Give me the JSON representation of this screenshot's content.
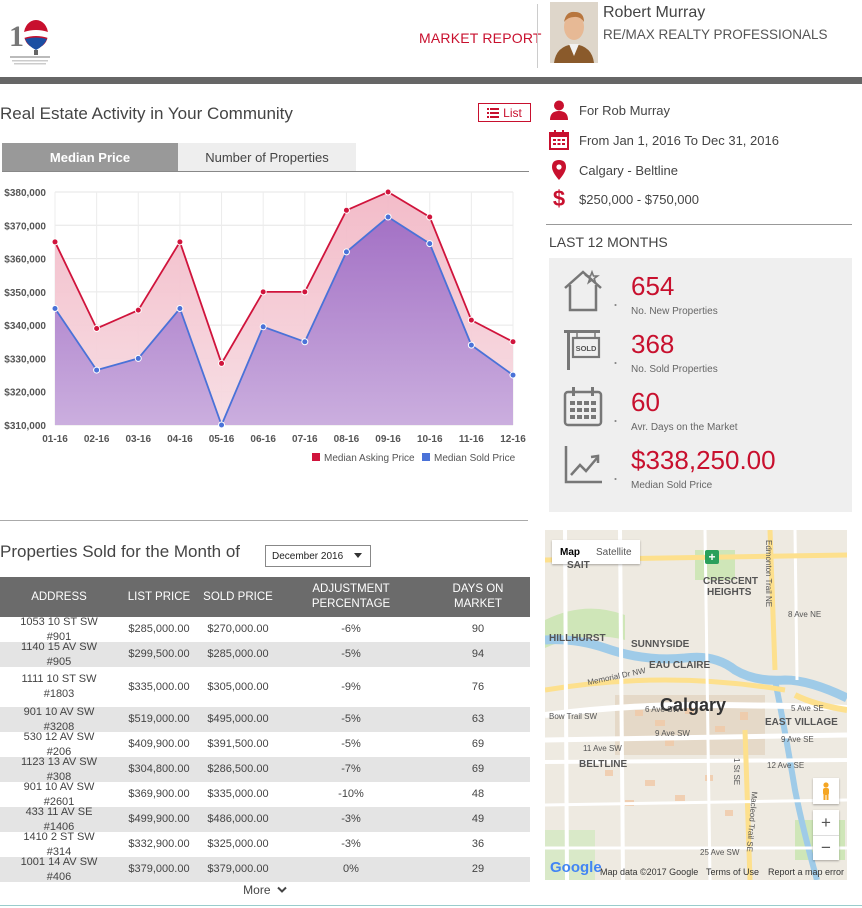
{
  "header": {
    "market_report": "MARKET REPORT",
    "agent_name": "Robert Murray",
    "agent_company": "RE/MAX REALTY PROFESSIONALS",
    "logo_icon": "remax-balloon-logo"
  },
  "activity": {
    "title": "Real Estate Activity in Your Community",
    "list_button": "List",
    "tabs": [
      {
        "label": "Median Price",
        "active": true
      },
      {
        "label": "Number of Properties",
        "active": false
      }
    ]
  },
  "chart_data": {
    "type": "area",
    "categories": [
      "01-16",
      "02-16",
      "03-16",
      "04-16",
      "05-16",
      "06-16",
      "07-16",
      "08-16",
      "09-16",
      "10-16",
      "11-16",
      "12-16"
    ],
    "yticks": [
      "$380,000",
      "$370,000",
      "$360,000",
      "$350,000",
      "$340,000",
      "$330,000",
      "$320,000",
      "$310,000"
    ],
    "ylim": [
      310000,
      380000
    ],
    "series": [
      {
        "name": "Median Asking Price",
        "color": "#d0143c",
        "values": [
          365000,
          339000,
          344500,
          365000,
          328500,
          350000,
          350000,
          374500,
          380000,
          372500,
          341500,
          335000
        ]
      },
      {
        "name": "Median Sold Price",
        "color": "#4a72d8",
        "values": [
          345000,
          326500,
          330000,
          345000,
          310000,
          339500,
          335000,
          362000,
          372500,
          364500,
          334000,
          325000
        ]
      }
    ],
    "legend_position": "bottom-right",
    "grid": true
  },
  "filters": {
    "for": "For Rob Murray",
    "dates": "From Jan 1, 2016 To Dec 31, 2016",
    "location": "Calgary - Beltline",
    "price_range": "$250,000 - $750,000"
  },
  "last12": {
    "title": "LAST 12 MONTHS",
    "stats": [
      {
        "value": "654",
        "label": "No. New Properties",
        "icon": "house-star-icon"
      },
      {
        "value": "368",
        "label": "No. Sold Properties",
        "icon": "sold-sign-icon",
        "sign_text": "SOLD"
      },
      {
        "value": "60",
        "label": "Avr. Days on the Market",
        "icon": "calendar-icon"
      },
      {
        "value": "$338,250.00",
        "label": "Median Sold Price",
        "icon": "trend-up-icon"
      }
    ]
  },
  "sold": {
    "title": "Properties Sold for the Month of",
    "month": "December 2016",
    "columns": [
      "ADDRESS",
      "LIST PRICE",
      "SOLD PRICE",
      "ADJUSTMENT PERCENTAGE",
      "DAYS ON MARKET"
    ],
    "rows": [
      {
        "address": "1053 10 ST SW #901",
        "list": "$285,000.00",
        "sold": "$270,000.00",
        "adj": "-6%",
        "days": "90"
      },
      {
        "address": "1140 15 AV SW #905",
        "list": "$299,500.00",
        "sold": "$285,000.00",
        "adj": "-5%",
        "days": "94"
      },
      {
        "address": "1111 10 ST SW #1803",
        "list": "$335,000.00",
        "sold": "$305,000.00",
        "adj": "-9%",
        "days": "76"
      },
      {
        "address": "901 10 AV SW #3208",
        "list": "$519,000.00",
        "sold": "$495,000.00",
        "adj": "-5%",
        "days": "63"
      },
      {
        "address": "530 12 AV SW #206",
        "list": "$409,900.00",
        "sold": "$391,500.00",
        "adj": "-5%",
        "days": "69"
      },
      {
        "address": "1123 13 AV SW #308",
        "list": "$304,800.00",
        "sold": "$286,500.00",
        "adj": "-7%",
        "days": "69"
      },
      {
        "address": "901 10 AV SW #2601",
        "list": "$369,900.00",
        "sold": "$335,000.00",
        "adj": "-10%",
        "days": "48"
      },
      {
        "address": "433 11 AV SE #1406",
        "list": "$499,900.00",
        "sold": "$486,000.00",
        "adj": "-3%",
        "days": "49"
      },
      {
        "address": "1410 2 ST SW #314",
        "list": "$332,900.00",
        "sold": "$325,000.00",
        "adj": "-3%",
        "days": "36"
      },
      {
        "address": "1001 14 AV SW #406",
        "list": "$379,000.00",
        "sold": "$379,000.00",
        "adj": "0%",
        "days": "29"
      }
    ],
    "more": "More"
  },
  "map": {
    "type_map": "Map",
    "type_satellite": "Satellite",
    "labels": {
      "city": "Calgary",
      "crescent": "CRESCENT",
      "heights": "HEIGHTS",
      "hillhurst": "HILLHURST",
      "sunnyside": "SUNNYSIDE",
      "eau_claire": "EAU CLAIRE",
      "east_village": "EAST VILLAGE",
      "beltline": "BELTLINE",
      "sait": "SAIT",
      "memorial": "Memorial Dr NW",
      "bow_trail": "Bow Trail SW",
      "ave6": "6 Ave SW",
      "ave9": "9 Ave SW",
      "ave11": "11 Ave SW",
      "ave12": "12 Ave SE",
      "ave25": "25 Ave SW",
      "ave5se": "5 Ave SE",
      "ave9se": "9 Ave SE",
      "ave8ne": "8 Ave NE",
      "st1se": "1 St SE",
      "edmonton": "Edmonton Trail NE",
      "macleod": "Macleod Trail SE"
    },
    "attribution_brand": "Google",
    "attribution": "Map data ©2017 Google",
    "terms": "Terms of Use",
    "report": "Report a map error"
  }
}
